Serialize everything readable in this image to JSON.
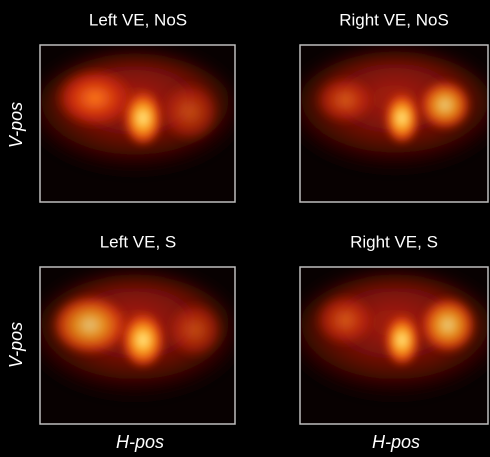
{
  "panels": [
    {
      "title": "Left VE, NoS"
    },
    {
      "title": "Right VE, NoS"
    },
    {
      "title": "Left VE, S"
    },
    {
      "title": "Right VE, S"
    }
  ],
  "y_labels": [
    "V-pos",
    "V-pos"
  ],
  "x_labels": [
    "H-pos",
    "H-pos"
  ]
}
